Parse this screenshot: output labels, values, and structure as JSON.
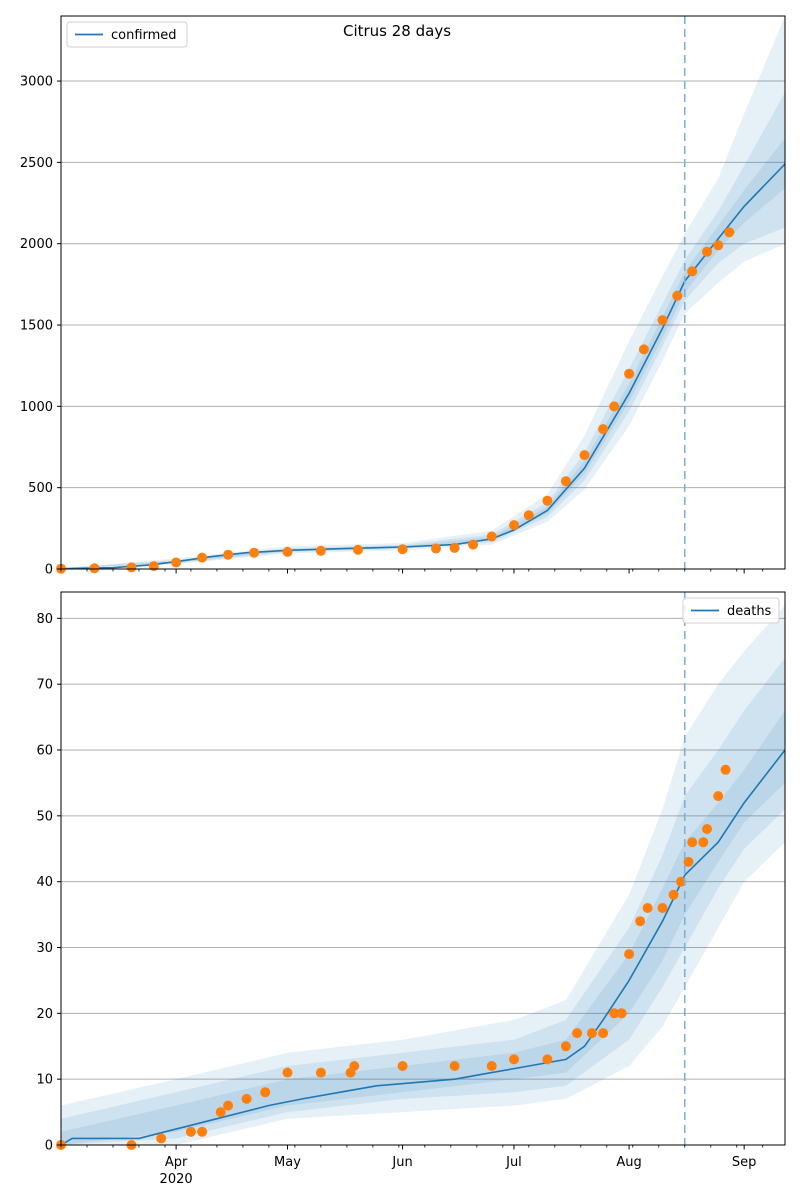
{
  "title": "Citrus 28 days",
  "colors": {
    "model": "#1f77b4",
    "observed": "#ff7f0e",
    "band": "#1f77b4",
    "grid": "#b0b0b0",
    "forecast_line": "#7fb1d6"
  },
  "chart_data": [
    {
      "id": "confirmed",
      "type": "line",
      "title": "Citrus 28 days",
      "xlabel": "",
      "ylabel": "",
      "x_axis": {
        "type": "date",
        "range": [
          "2020-03-01",
          "2020-09-12"
        ],
        "tick_labels": [
          {
            "date": "2020-04-01",
            "label": "Apr",
            "sublabel": "2020"
          },
          {
            "date": "2020-05-01",
            "label": "May",
            "sublabel": ""
          },
          {
            "date": "2020-06-01",
            "label": "Jun",
            "sublabel": ""
          },
          {
            "date": "2020-07-01",
            "label": "Jul",
            "sublabel": ""
          },
          {
            "date": "2020-08-01",
            "label": "Aug",
            "sublabel": ""
          },
          {
            "date": "2020-09-01",
            "label": "Sep",
            "sublabel": ""
          }
        ],
        "show_tick_labels": false
      },
      "ylim": [
        0,
        3400
      ],
      "yticks": [
        0,
        500,
        1000,
        1500,
        2000,
        2500,
        3000
      ],
      "grid": "horizontal",
      "legend": {
        "placement": "top-left",
        "entries": [
          {
            "label": "confirmed",
            "series": "model"
          }
        ]
      },
      "forecast_start": "2020-08-16",
      "model_line": {
        "x": [
          "2020-03-01",
          "2020-03-15",
          "2020-03-25",
          "2020-04-01",
          "2020-04-10",
          "2020-04-20",
          "2020-05-01",
          "2020-05-15",
          "2020-06-01",
          "2020-06-15",
          "2020-06-25",
          "2020-07-01",
          "2020-07-10",
          "2020-07-20",
          "2020-08-01",
          "2020-08-10",
          "2020-08-16",
          "2020-08-25",
          "2020-09-01",
          "2020-09-12"
        ],
        "y": [
          2,
          8,
          25,
          45,
          75,
          100,
          115,
          125,
          135,
          150,
          185,
          240,
          360,
          620,
          1080,
          1480,
          1770,
          2030,
          2230,
          2490
        ]
      },
      "bands": [
        {
          "x": [
            "2020-03-01",
            "2020-04-01",
            "2020-05-01",
            "2020-06-01",
            "2020-06-25",
            "2020-07-10",
            "2020-07-20",
            "2020-08-01",
            "2020-08-10",
            "2020-08-16",
            "2020-08-25",
            "2020-09-01",
            "2020-09-12"
          ],
          "low": [
            0,
            30,
            95,
            115,
            150,
            290,
            490,
            880,
            1280,
            1570,
            1760,
            1890,
            2000
          ],
          "high": [
            5,
            65,
            140,
            160,
            235,
            460,
            820,
            1400,
            1800,
            2060,
            2400,
            2800,
            3400
          ]
        },
        {
          "x": [
            "2020-03-01",
            "2020-04-01",
            "2020-05-01",
            "2020-06-01",
            "2020-06-25",
            "2020-07-10",
            "2020-07-20",
            "2020-08-01",
            "2020-08-10",
            "2020-08-16",
            "2020-08-25",
            "2020-09-01",
            "2020-09-12"
          ],
          "low": [
            0,
            36,
            104,
            124,
            164,
            320,
            545,
            970,
            1370,
            1650,
            1880,
            2000,
            2100
          ],
          "high": [
            4,
            56,
            128,
            148,
            212,
            410,
            715,
            1230,
            1630,
            1900,
            2200,
            2480,
            2930
          ]
        },
        {
          "x": [
            "2020-03-01",
            "2020-04-01",
            "2020-05-01",
            "2020-06-01",
            "2020-06-25",
            "2020-07-10",
            "2020-07-20",
            "2020-08-01",
            "2020-08-10",
            "2020-08-16",
            "2020-08-25",
            "2020-09-01",
            "2020-09-12"
          ],
          "low": [
            1,
            40,
            110,
            130,
            175,
            340,
            585,
            1030,
            1420,
            1700,
            1960,
            2130,
            2340
          ],
          "high": [
            3,
            50,
            120,
            140,
            197,
            385,
            665,
            1140,
            1550,
            1830,
            2110,
            2330,
            2650
          ]
        }
      ],
      "observed": {
        "x": [
          "2020-03-01",
          "2020-03-10",
          "2020-03-20",
          "2020-03-26",
          "2020-04-01",
          "2020-04-08",
          "2020-04-15",
          "2020-04-22",
          "2020-05-01",
          "2020-05-10",
          "2020-05-20",
          "2020-06-01",
          "2020-06-10",
          "2020-06-15",
          "2020-06-20",
          "2020-06-25",
          "2020-07-01",
          "2020-07-05",
          "2020-07-10",
          "2020-07-15",
          "2020-07-20",
          "2020-07-25",
          "2020-07-28",
          "2020-08-01",
          "2020-08-05",
          "2020-08-10",
          "2020-08-14",
          "2020-08-18",
          "2020-08-22",
          "2020-08-25",
          "2020-08-28"
        ],
        "y": [
          2,
          4,
          10,
          18,
          40,
          70,
          88,
          100,
          105,
          112,
          118,
          122,
          126,
          130,
          150,
          200,
          270,
          330,
          420,
          540,
          700,
          860,
          1000,
          1200,
          1350,
          1530,
          1680,
          1830,
          1950,
          1990,
          2070
        ]
      }
    },
    {
      "id": "deaths",
      "type": "line",
      "title": "",
      "xlabel": "",
      "ylabel": "",
      "x_axis": {
        "type": "date",
        "range": [
          "2020-03-01",
          "2020-09-12"
        ],
        "tick_labels": [
          {
            "date": "2020-04-01",
            "label": "Apr",
            "sublabel": "2020"
          },
          {
            "date": "2020-05-01",
            "label": "May",
            "sublabel": ""
          },
          {
            "date": "2020-06-01",
            "label": "Jun",
            "sublabel": ""
          },
          {
            "date": "2020-07-01",
            "label": "Jul",
            "sublabel": ""
          },
          {
            "date": "2020-08-01",
            "label": "Aug",
            "sublabel": ""
          },
          {
            "date": "2020-09-01",
            "label": "Sep",
            "sublabel": ""
          }
        ],
        "show_tick_labels": true
      },
      "ylim": [
        0,
        84
      ],
      "yticks": [
        0,
        10,
        20,
        30,
        40,
        50,
        60,
        70,
        80
      ],
      "grid": "horizontal",
      "legend": {
        "placement": "top-right",
        "entries": [
          {
            "label": "deaths",
            "series": "model"
          }
        ]
      },
      "forecast_start": "2020-08-16",
      "model_line": {
        "x": [
          "2020-03-01",
          "2020-03-04",
          "2020-03-22",
          "2020-03-29",
          "2020-04-05",
          "2020-04-12",
          "2020-04-19",
          "2020-04-26",
          "2020-05-05",
          "2020-05-15",
          "2020-05-25",
          "2020-06-15",
          "2020-06-25",
          "2020-07-05",
          "2020-07-15",
          "2020-07-20",
          "2020-07-25",
          "2020-08-01",
          "2020-08-10",
          "2020-08-16",
          "2020-08-25",
          "2020-09-01",
          "2020-09-12"
        ],
        "y": [
          0,
          1,
          1,
          2,
          3,
          4,
          5,
          6,
          7,
          8,
          9,
          10,
          11,
          12,
          13,
          15,
          19,
          25,
          34,
          41,
          46,
          52,
          60
        ]
      },
      "bands": [
        {
          "x": [
            "2020-03-01",
            "2020-04-01",
            "2020-05-01",
            "2020-06-01",
            "2020-07-01",
            "2020-07-15",
            "2020-08-01",
            "2020-08-10",
            "2020-08-16",
            "2020-08-25",
            "2020-09-01",
            "2020-09-12"
          ],
          "low": [
            0,
            0,
            4,
            5,
            6,
            7,
            12,
            18,
            24,
            33,
            40,
            46
          ],
          "high": [
            6,
            10,
            14,
            16,
            19,
            22,
            38,
            51,
            62,
            70,
            75,
            82
          ]
        },
        {
          "x": [
            "2020-03-01",
            "2020-04-01",
            "2020-05-01",
            "2020-06-01",
            "2020-07-01",
            "2020-07-15",
            "2020-08-01",
            "2020-08-10",
            "2020-08-16",
            "2020-08-25",
            "2020-09-01",
            "2020-09-12"
          ],
          "low": [
            0,
            1,
            5,
            7,
            8,
            9,
            16,
            24,
            30,
            39,
            45,
            51
          ],
          "high": [
            4,
            8,
            12,
            14,
            16,
            19,
            33,
            44,
            53,
            60,
            66,
            74
          ]
        },
        {
          "x": [
            "2020-03-01",
            "2020-04-01",
            "2020-05-01",
            "2020-06-01",
            "2020-07-01",
            "2020-07-15",
            "2020-08-01",
            "2020-08-10",
            "2020-08-16",
            "2020-08-25",
            "2020-09-01",
            "2020-09-12"
          ],
          "low": [
            0,
            2,
            6,
            8,
            10,
            11,
            20,
            28,
            35,
            43,
            49,
            55
          ],
          "high": [
            2,
            6,
            10,
            12,
            14,
            16,
            29,
            39,
            46,
            52,
            57,
            66
          ]
        }
      ],
      "observed": {
        "x": [
          "2020-03-01",
          "2020-03-20",
          "2020-03-28",
          "2020-04-05",
          "2020-04-08",
          "2020-04-13",
          "2020-04-15",
          "2020-04-20",
          "2020-04-25",
          "2020-05-01",
          "2020-05-10",
          "2020-05-18",
          "2020-05-19",
          "2020-06-01",
          "2020-06-15",
          "2020-06-25",
          "2020-07-01",
          "2020-07-10",
          "2020-07-15",
          "2020-07-18",
          "2020-07-22",
          "2020-07-25",
          "2020-07-28",
          "2020-07-30",
          "2020-08-01",
          "2020-08-04",
          "2020-08-06",
          "2020-08-10",
          "2020-08-13",
          "2020-08-15",
          "2020-08-17",
          "2020-08-18",
          "2020-08-21",
          "2020-08-22",
          "2020-08-25",
          "2020-08-27"
        ],
        "y": [
          0,
          0,
          1,
          2,
          2,
          5,
          6,
          7,
          8,
          11,
          11,
          11,
          12,
          12,
          12,
          12,
          13,
          13,
          15,
          17,
          17,
          17,
          20,
          20,
          29,
          34,
          36,
          36,
          38,
          40,
          43,
          46,
          46,
          48,
          53,
          57
        ]
      }
    }
  ]
}
